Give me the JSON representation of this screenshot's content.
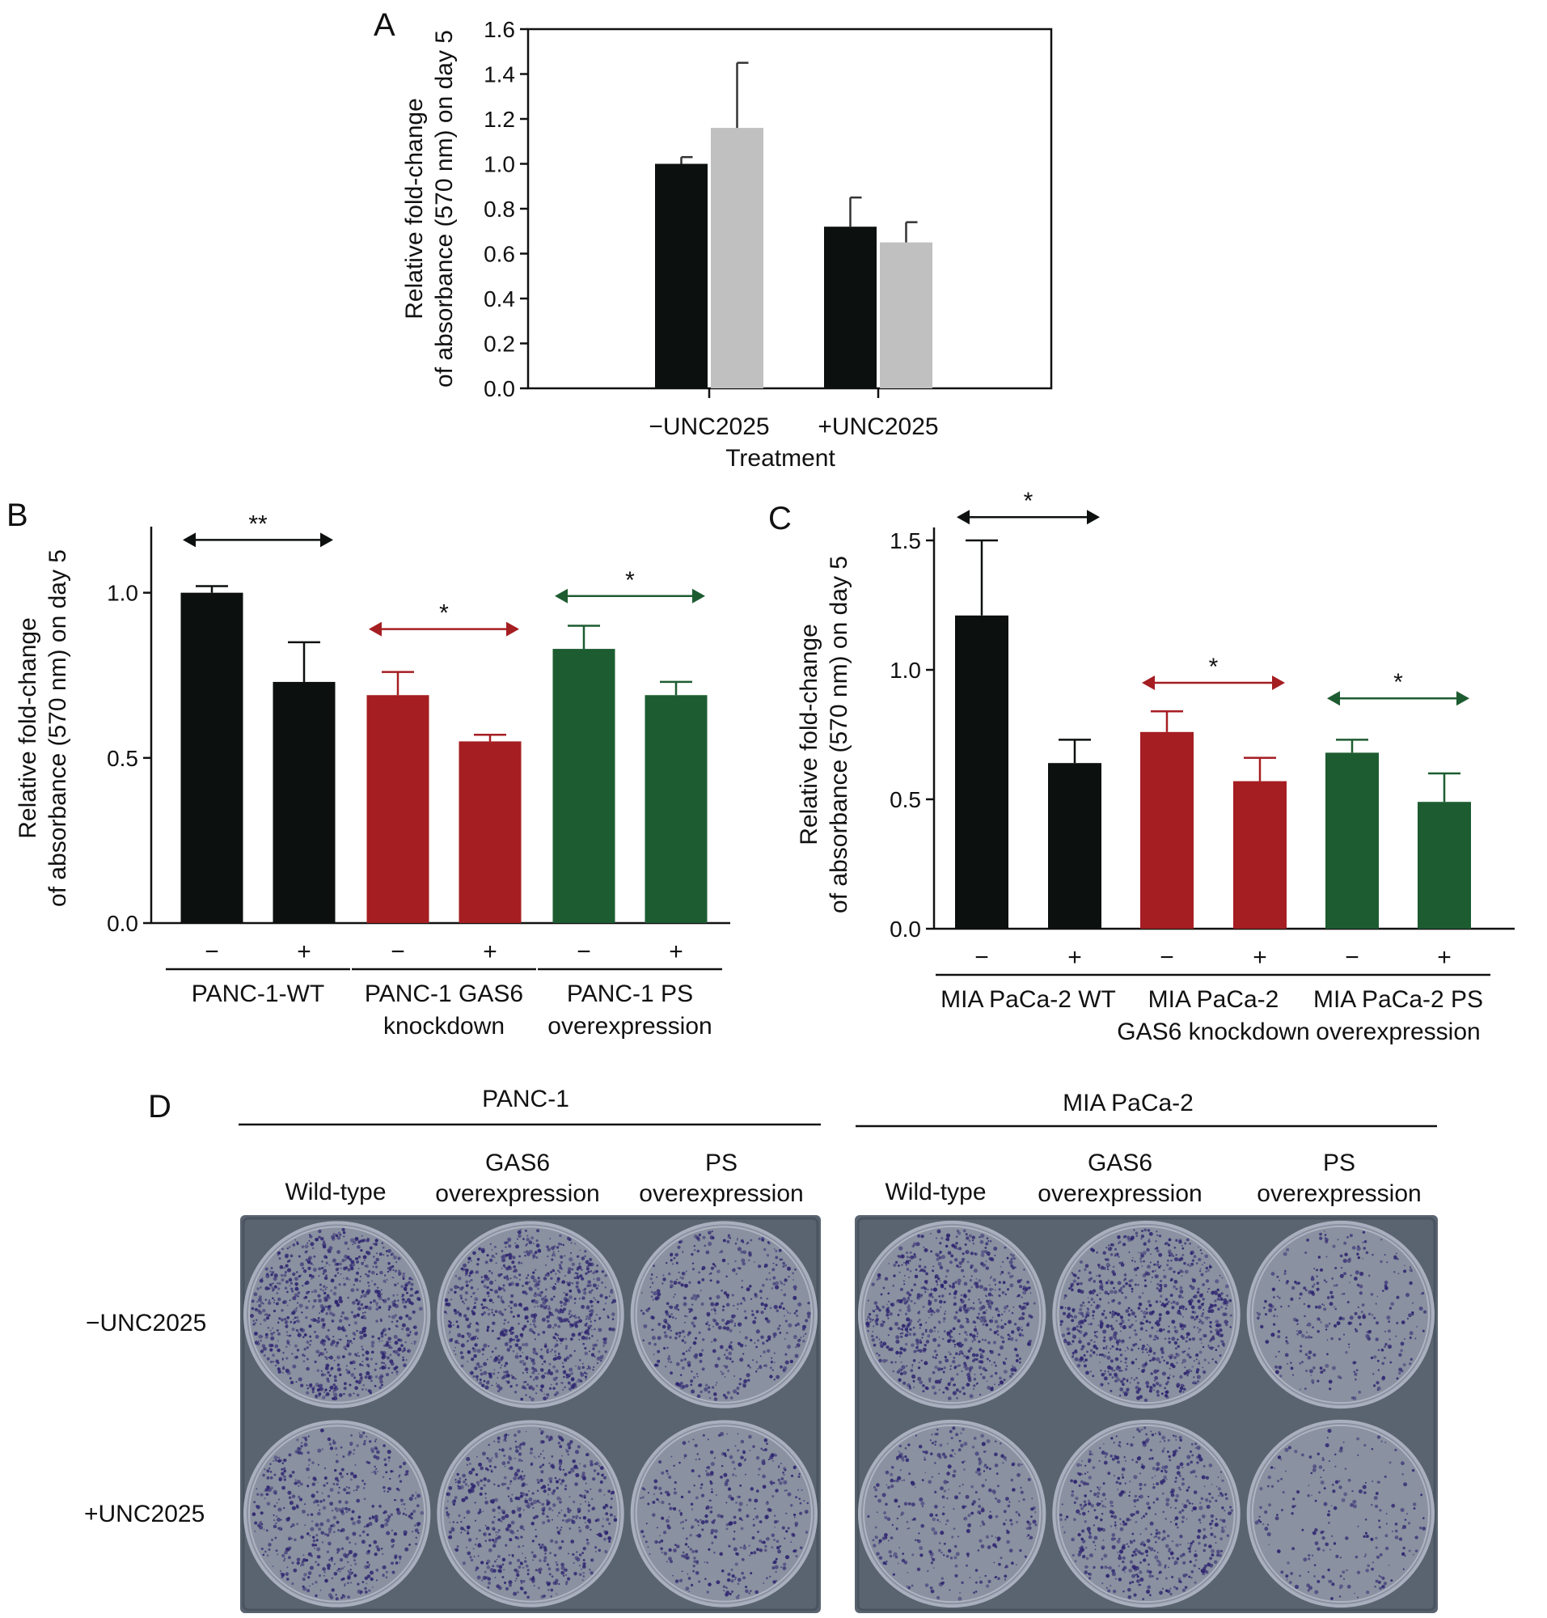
{
  "figure": {
    "panel_labels": [
      "A",
      "B",
      "C",
      "D"
    ],
    "colors": {
      "black": "#0c100e",
      "gray": "#c0c0c0",
      "red": "#a51e22",
      "green": "#1d5c31"
    }
  },
  "chart_data": [
    {
      "panel": "A",
      "type": "bar",
      "categories": [
        "−UNC2025",
        "+UNC2025"
      ],
      "xlabel": "Treatment",
      "ylabel_lines": [
        "Relative fold-change",
        "of absorbance (570 nm) on day 5"
      ],
      "ylim": [
        0,
        1.6
      ],
      "yticks": [
        "0.0",
        "0.2",
        "0.4",
        "0.6",
        "0.8",
        "1.0",
        "1.2",
        "1.4",
        "1.6"
      ],
      "ytick_values": [
        0,
        0.2,
        0.4,
        0.6,
        0.8,
        1.0,
        1.2,
        1.4,
        1.6
      ],
      "frame": "box",
      "grid": false,
      "legend": null,
      "series": [
        {
          "values": [
            1.0,
            0.72
          ],
          "errors": [
            0.03,
            0.13
          ],
          "color": "#0c100e"
        },
        {
          "values": [
            1.16,
            0.65
          ],
          "errors": [
            0.29,
            0.09
          ],
          "color": "#c0c0c0"
        }
      ]
    },
    {
      "panel": "B",
      "type": "bar",
      "ylabel_lines": [
        "Relative fold-change",
        "of absorbance (570 nm) on day 5"
      ],
      "ylim": [
        0,
        1.2
      ],
      "yticks": [
        "0.0",
        "0.5",
        "1.0"
      ],
      "ytick_values": [
        0,
        0.5,
        1.0
      ],
      "frame": "open",
      "grid": false,
      "bars": [
        {
          "treatment": "−",
          "value": 1.0,
          "error": 0.02,
          "color": "#0c100e"
        },
        {
          "treatment": "+",
          "value": 0.73,
          "error": 0.12,
          "color": "#0c100e"
        },
        {
          "treatment": "−",
          "value": 0.69,
          "error": 0.07,
          "color": "#a51e22"
        },
        {
          "treatment": "+",
          "value": 0.55,
          "error": 0.02,
          "color": "#a51e22"
        },
        {
          "treatment": "−",
          "value": 0.83,
          "error": 0.07,
          "color": "#1d5c31"
        },
        {
          "treatment": "+",
          "value": 0.69,
          "error": 0.04,
          "color": "#1d5c31"
        }
      ],
      "groups": [
        {
          "lines": [
            "PANC-1-WT"
          ],
          "bars": [
            0,
            1
          ]
        },
        {
          "lines": [
            "PANC-1 GAS6",
            "knockdown"
          ],
          "bars": [
            2,
            3
          ]
        },
        {
          "lines": [
            "PANC-1 PS",
            "overexpression"
          ],
          "bars": [
            4,
            5
          ]
        }
      ],
      "significance": [
        {
          "label": "**",
          "bars": [
            0,
            1
          ],
          "y": 1.16,
          "color": "#0c100e"
        },
        {
          "label": "*",
          "bars": [
            2,
            3
          ],
          "y": 0.89,
          "color": "#a51e22"
        },
        {
          "label": "*",
          "bars": [
            4,
            5
          ],
          "y": 0.99,
          "color": "#1d5c31"
        }
      ]
    },
    {
      "panel": "C",
      "type": "bar",
      "ylabel_lines": [
        "Relative fold-change",
        "of absorbance (570 nm) on day 5"
      ],
      "ylim": [
        0,
        1.6
      ],
      "yticks": [
        "0.0",
        "0.5",
        "1.0",
        "1.5"
      ],
      "ytick_values": [
        0,
        0.5,
        1.0,
        1.5
      ],
      "frame": "open",
      "grid": false,
      "bars": [
        {
          "treatment": "−",
          "value": 1.21,
          "error": 0.29,
          "color": "#0c100e"
        },
        {
          "treatment": "+",
          "value": 0.64,
          "error": 0.09,
          "color": "#0c100e"
        },
        {
          "treatment": "−",
          "value": 0.76,
          "error": 0.08,
          "color": "#a51e22"
        },
        {
          "treatment": "+",
          "value": 0.57,
          "error": 0.09,
          "color": "#a51e22"
        },
        {
          "treatment": "−",
          "value": 0.68,
          "error": 0.05,
          "color": "#1d5c31"
        },
        {
          "treatment": "+",
          "value": 0.49,
          "error": 0.11,
          "color": "#1d5c31"
        }
      ],
      "groups": [
        {
          "lines": [
            "MIA PaCa-2 WT"
          ],
          "bars": [
            0,
            1
          ]
        },
        {
          "lines": [
            "MIA PaCa-2",
            "GAS6 knockdown"
          ],
          "bars": [
            2,
            3
          ]
        },
        {
          "lines": [
            "MIA PaCa-2 PS",
            "overexpression"
          ],
          "bars": [
            4,
            5
          ]
        }
      ],
      "significance": [
        {
          "label": "*",
          "bars": [
            0,
            1
          ],
          "y": 1.59,
          "color": "#0c100e"
        },
        {
          "label": "*",
          "bars": [
            2,
            3
          ],
          "y": 0.95,
          "color": "#a51e22"
        },
        {
          "label": "*",
          "bars": [
            4,
            5
          ],
          "y": 0.89,
          "color": "#1d5c31"
        }
      ]
    }
  ],
  "panel_d": {
    "cell_lines": [
      {
        "name": "PANC-1",
        "columns": [
          {
            "lines": [
              "Wild-type"
            ]
          },
          {
            "lines": [
              "GAS6",
              "overexpression"
            ]
          },
          {
            "lines": [
              "PS",
              "overexpression"
            ]
          }
        ],
        "density": [
          [
            0.95,
            0.95,
            0.55
          ],
          [
            0.6,
            0.7,
            0.45
          ]
        ]
      },
      {
        "name": "MIA PaCa-2",
        "columns": [
          {
            "lines": [
              "Wild-type"
            ]
          },
          {
            "lines": [
              "GAS6",
              "overexpression"
            ]
          },
          {
            "lines": [
              "PS",
              "overexpression"
            ]
          }
        ],
        "density": [
          [
            0.85,
            0.95,
            0.35
          ],
          [
            0.4,
            0.65,
            0.25
          ]
        ]
      }
    ],
    "rows": [
      "−UNC2025",
      "+UNC2025"
    ],
    "colors": {
      "plate": "#5a6470",
      "plate_dark": "#4a5460",
      "well_bg": "#8a91a0",
      "colony": "#2e2570",
      "rim": "#a9afbe"
    }
  }
}
